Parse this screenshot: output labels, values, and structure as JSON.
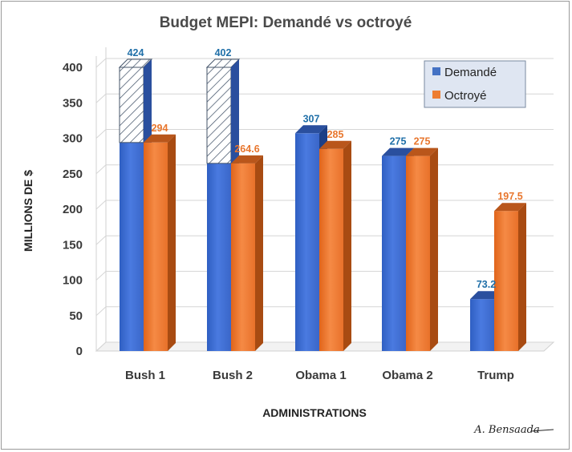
{
  "chart_data": {
    "type": "bar",
    "title": "Budget MEPI: Demandé vs octroyé",
    "xlabel": "ADMINISTRATIONS",
    "ylabel": "MILLIONS DE $",
    "ylim": [
      0,
      400
    ],
    "yticks": [
      "0",
      "50",
      "100",
      "150",
      "200",
      "250",
      "300",
      "350",
      "400"
    ],
    "categories": [
      "Bush 1",
      "Bush 2",
      "Obama 1",
      "Obama 2",
      "Trump"
    ],
    "series": [
      {
        "name": "Demandé",
        "values": [
          424,
          402,
          307,
          275,
          73.2
        ],
        "labels": [
          "424",
          "402",
          "307",
          "275",
          "73.2"
        ],
        "color": "#4472c4",
        "label_color": "#1f6fa8"
      },
      {
        "name": "Octroyé",
        "values": [
          294,
          264.6,
          285,
          275,
          197.5
        ],
        "labels": [
          "294",
          "264.6",
          "285",
          "275",
          "197.5"
        ],
        "color": "#ed7d31",
        "label_color": "#e8762d"
      }
    ],
    "grid": true,
    "legend": "top-right",
    "three_d": true,
    "note": "The Bush 1 request above the axis maximum is drawn as a hatched segment"
  },
  "signature": "A. Bensaada"
}
